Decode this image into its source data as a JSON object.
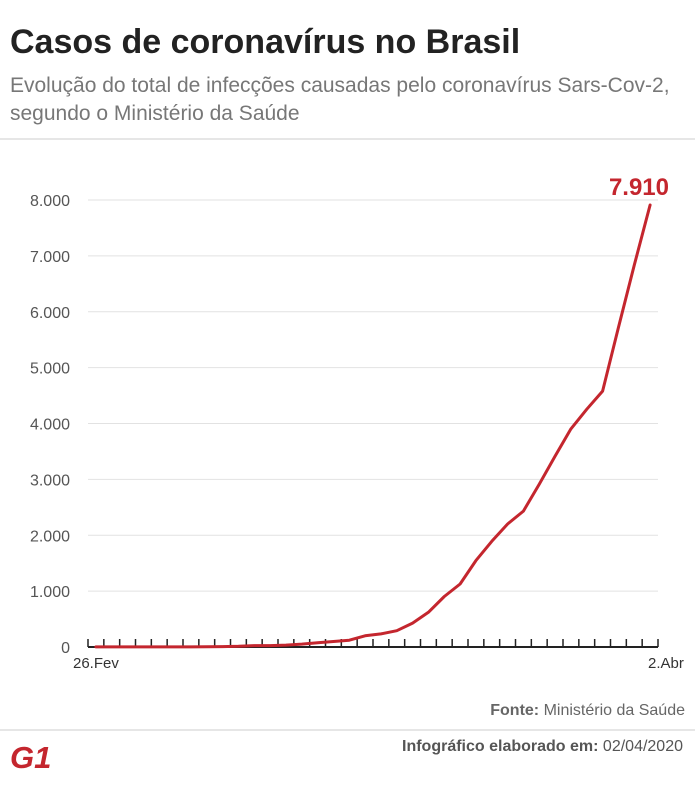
{
  "header": {
    "title": "Casos de coronavírus no Brasil",
    "subtitle": "Evolução do total de infecções causadas pelo coronavírus Sars-Cov-2, segundo o Ministério da Saúde"
  },
  "footer": {
    "source_label": "Fonte:",
    "source_value": "Ministério da Saúde",
    "credit_label": "Infográfico elaborado em:",
    "credit_value": "02/04/2020",
    "logo_text": "G1"
  },
  "colors": {
    "line": "#c4262e",
    "axis": "#222222",
    "grid": "#e2e2e2",
    "logo": "#c4262e"
  },
  "chart_data": {
    "type": "line",
    "title": "",
    "xlabel": "",
    "ylabel": "",
    "ylim": [
      0,
      8000
    ],
    "yticks": [
      0,
      1000,
      2000,
      3000,
      4000,
      5000,
      6000,
      7000,
      8000
    ],
    "ytick_labels": [
      "0",
      "1.000",
      "2.000",
      "3.000",
      "4.000",
      "5.000",
      "6.000",
      "7.000",
      "8.000"
    ],
    "x_labels": [
      {
        "index": 0,
        "label": "26.Fev"
      },
      {
        "index": 36,
        "label": "2.Abr"
      }
    ],
    "grid": true,
    "series": [
      {
        "values": [
          1,
          1,
          1,
          2,
          2,
          2,
          2,
          3,
          8,
          13,
          25,
          25,
          34,
          52,
          77,
          98,
          121,
          200,
          234,
          291,
          428,
          621,
          904,
          1128,
          1546,
          1891,
          2201,
          2433,
          2915,
          3417,
          3904,
          4256,
          4579,
          5717,
          6836,
          7910
        ]
      }
    ],
    "annotation": {
      "index": 35,
      "label": "7.910"
    }
  }
}
